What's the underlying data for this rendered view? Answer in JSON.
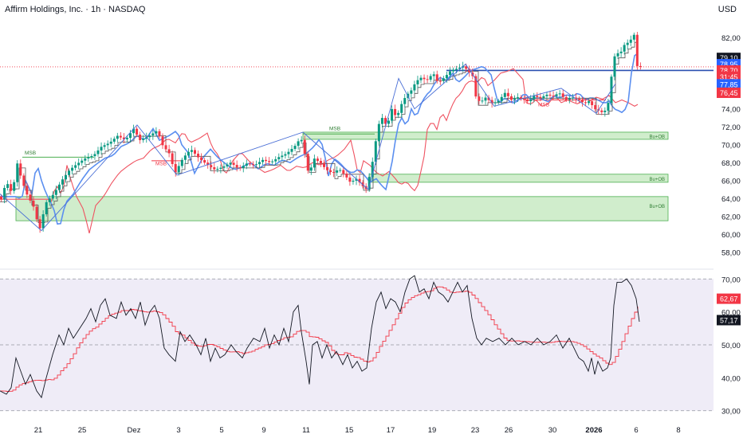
{
  "header": {
    "symbol_title": "Affirm Holdings, Inc. · 1h · NASDAQ",
    "currency": "USD"
  },
  "colors": {
    "bull": "#089981",
    "bear": "#f23645",
    "ema_fast": "#5b8ff0",
    "ema_slow": "#ef5361",
    "zone_fill": "#b7e3b1",
    "zone_border": "#4caf50",
    "zigzag": "#4a6fd6",
    "resistance": "#2a4fb0",
    "rsi_line": "#131722",
    "rsi_ma": "#f23645",
    "rsi_band": "#efecf7"
  },
  "chart_data": [
    {
      "type": "candlestick",
      "title": "Affirm Holdings, Inc. · 1h · NASDAQ",
      "y_axis": {
        "range": [
          56.8,
          83.5
        ],
        "ticks": [
          "82,00",
          "80,00",
          "78,00",
          "76,00",
          "74,00",
          "72,00",
          "70,00",
          "68,00",
          "66,00",
          "64,00",
          "62,00",
          "60,00",
          "58,00"
        ]
      },
      "x_axis": {
        "ticks": [
          "21",
          "25",
          "Dez",
          "3",
          "5",
          "9",
          "11",
          "15",
          "17",
          "19",
          "23",
          "26",
          "30",
          "2026",
          "6",
          "8"
        ]
      },
      "price_path": [
        [
          0,
          64.2
        ],
        [
          5,
          63.8
        ],
        [
          10,
          66.0
        ],
        [
          18,
          64.5
        ],
        [
          24,
          68.0
        ],
        [
          30,
          66.0
        ],
        [
          36,
          64.5
        ],
        [
          45,
          63.0
        ],
        [
          52,
          60.4
        ],
        [
          60,
          63.5
        ],
        [
          70,
          64.5
        ],
        [
          80,
          66.0
        ],
        [
          90,
          67.2
        ],
        [
          100,
          67.9
        ],
        [
          110,
          68.5
        ],
        [
          120,
          68.8
        ],
        [
          130,
          69.8
        ],
        [
          140,
          70.2
        ],
        [
          150,
          71.0
        ],
        [
          160,
          70.5
        ],
        [
          170,
          71.8
        ],
        [
          178,
          70.5
        ],
        [
          190,
          71.0
        ],
        [
          200,
          71.6
        ],
        [
          206,
          70.0
        ],
        [
          215,
          69.0
        ],
        [
          222,
          66.8
        ],
        [
          232,
          68.5
        ],
        [
          242,
          69.5
        ],
        [
          252,
          68.5
        ],
        [
          262,
          67.8
        ],
        [
          272,
          67.2
        ],
        [
          282,
          67.5
        ],
        [
          292,
          68.0
        ],
        [
          302,
          67.3
        ],
        [
          312,
          67.9
        ],
        [
          322,
          67.7
        ],
        [
          332,
          68.3
        ],
        [
          342,
          68.0
        ],
        [
          352,
          68.6
        ],
        [
          362,
          69.0
        ],
        [
          372,
          69.8
        ],
        [
          380,
          70.8
        ],
        [
          386,
          68.5
        ],
        [
          390,
          66.5
        ],
        [
          396,
          68.5
        ],
        [
          404,
          68.0
        ],
        [
          412,
          67.2
        ],
        [
          420,
          66.8
        ],
        [
          428,
          67.3
        ],
        [
          436,
          66.5
        ],
        [
          442,
          65.8
        ],
        [
          450,
          66.2
        ],
        [
          456,
          65.5
        ],
        [
          462,
          65.0
        ],
        [
          466,
          66.5
        ],
        [
          472,
          69.0
        ],
        [
          476,
          72.0
        ],
        [
          482,
          73.0
        ],
        [
          488,
          72.0
        ],
        [
          494,
          74.0
        ],
        [
          500,
          73.0
        ],
        [
          506,
          74.5
        ],
        [
          512,
          75.5
        ],
        [
          518,
          76.0
        ],
        [
          524,
          77.0
        ],
        [
          530,
          77.5
        ],
        [
          538,
          77.2
        ],
        [
          546,
          78.0
        ],
        [
          552,
          76.9
        ],
        [
          560,
          77.5
        ],
        [
          568,
          78.3
        ],
        [
          576,
          78.5
        ],
        [
          584,
          78.8
        ],
        [
          590,
          78.2
        ],
        [
          596,
          77.6
        ],
        [
          600,
          75.0
        ],
        [
          606,
          74.8
        ],
        [
          612,
          75.3
        ],
        [
          620,
          74.6
        ],
        [
          628,
          74.9
        ],
        [
          636,
          75.8
        ],
        [
          644,
          75.0
        ],
        [
          652,
          75.3
        ],
        [
          660,
          75.0
        ],
        [
          666,
          74.8
        ],
        [
          672,
          75.5
        ],
        [
          680,
          75.2
        ],
        [
          688,
          75.6
        ],
        [
          696,
          75.4
        ],
        [
          704,
          75.8
        ],
        [
          712,
          75.0
        ],
        [
          720,
          75.3
        ],
        [
          728,
          75.0
        ],
        [
          736,
          74.6
        ],
        [
          742,
          74.9
        ],
        [
          748,
          74.0
        ],
        [
          754,
          73.8
        ],
        [
          760,
          73.5
        ],
        [
          766,
          74.8
        ],
        [
          772,
          79.6
        ],
        [
          776,
          80.3
        ],
        [
          780,
          80.1
        ],
        [
          786,
          81.2
        ],
        [
          792,
          81.5
        ],
        [
          798,
          82.3
        ],
        [
          802,
          78.7
        ]
      ],
      "series": [
        {
          "name": "",
          "last_value": "78,95"
        },
        {
          "name": "",
          "last_value": "77,85"
        },
        {
          "name": "",
          "last_value": "76,45"
        }
      ],
      "price_badges": [
        "79,10",
        "78,70",
        "31:45"
      ],
      "structure_labels": [
        "MSB",
        "MSB",
        "MSB",
        "MSB"
      ],
      "demand_zones": [
        {
          "label": "Bu+OB",
          "low": 70.6,
          "high": 71.4
        },
        {
          "label": "Bu+OB",
          "low": 65.8,
          "high": 66.7
        },
        {
          "label": "Bu+OB",
          "low": 61.5,
          "high": 64.2
        }
      ],
      "resistance_level": 78.3,
      "current_price_level": 78.7
    },
    {
      "type": "line",
      "title": "",
      "y_axis": {
        "range": [
          28,
          72
        ],
        "ticks": [
          "70,00",
          "60,00",
          "50,00",
          "40,00",
          "30,00"
        ]
      },
      "bands": [
        30,
        50,
        70
      ],
      "series": [
        {
          "name": "",
          "last_value": "57,17"
        },
        {
          "name": "",
          "last_value": "62,67"
        }
      ],
      "rsi_path": [
        [
          0,
          36
        ],
        [
          8,
          35
        ],
        [
          14,
          37
        ],
        [
          20,
          46
        ],
        [
          26,
          42
        ],
        [
          32,
          38
        ],
        [
          38,
          41
        ],
        [
          46,
          36
        ],
        [
          52,
          34
        ],
        [
          58,
          40
        ],
        [
          66,
          47
        ],
        [
          74,
          53
        ],
        [
          80,
          50
        ],
        [
          86,
          55
        ],
        [
          92,
          52
        ],
        [
          100,
          55
        ],
        [
          108,
          58
        ],
        [
          114,
          61
        ],
        [
          120,
          57
        ],
        [
          126,
          62
        ],
        [
          132,
          64
        ],
        [
          138,
          59
        ],
        [
          146,
          58
        ],
        [
          152,
          63
        ],
        [
          158,
          59
        ],
        [
          164,
          61
        ],
        [
          170,
          58
        ],
        [
          176,
          63
        ],
        [
          182,
          56
        ],
        [
          188,
          60
        ],
        [
          194,
          62
        ],
        [
          200,
          58
        ],
        [
          206,
          49
        ],
        [
          212,
          47
        ],
        [
          220,
          45
        ],
        [
          226,
          54
        ],
        [
          232,
          51
        ],
        [
          238,
          53
        ],
        [
          246,
          50
        ],
        [
          252,
          47
        ],
        [
          258,
          52
        ],
        [
          264,
          45
        ],
        [
          270,
          49
        ],
        [
          276,
          46
        ],
        [
          282,
          47
        ],
        [
          290,
          50
        ],
        [
          296,
          48
        ],
        [
          304,
          46
        ],
        [
          310,
          49
        ],
        [
          318,
          52
        ],
        [
          326,
          51
        ],
        [
          332,
          55
        ],
        [
          338,
          49
        ],
        [
          344,
          53
        ],
        [
          350,
          50
        ],
        [
          356,
          55
        ],
        [
          362,
          51
        ],
        [
          368,
          60
        ],
        [
          374,
          62
        ],
        [
          378,
          54
        ],
        [
          384,
          45
        ],
        [
          388,
          38
        ],
        [
          392,
          50
        ],
        [
          398,
          51
        ],
        [
          404,
          46
        ],
        [
          410,
          50
        ],
        [
          416,
          46
        ],
        [
          422,
          48
        ],
        [
          430,
          44
        ],
        [
          436,
          47
        ],
        [
          442,
          43
        ],
        [
          448,
          45
        ],
        [
          454,
          42
        ],
        [
          460,
          43
        ],
        [
          466,
          55
        ],
        [
          472,
          63
        ],
        [
          478,
          66
        ],
        [
          484,
          61
        ],
        [
          490,
          64
        ],
        [
          496,
          63
        ],
        [
          502,
          60
        ],
        [
          508,
          66
        ],
        [
          514,
          70
        ],
        [
          520,
          71
        ],
        [
          526,
          66
        ],
        [
          532,
          67
        ],
        [
          538,
          64
        ],
        [
          544,
          69
        ],
        [
          550,
          66
        ],
        [
          556,
          65
        ],
        [
          562,
          63
        ],
        [
          568,
          66
        ],
        [
          574,
          69
        ],
        [
          580,
          66
        ],
        [
          586,
          68
        ],
        [
          592,
          58
        ],
        [
          598,
          52
        ],
        [
          604,
          50
        ],
        [
          610,
          52
        ],
        [
          618,
          51
        ],
        [
          626,
          52
        ],
        [
          634,
          50
        ],
        [
          642,
          52
        ],
        [
          650,
          50
        ],
        [
          658,
          51
        ],
        [
          666,
          50
        ],
        [
          674,
          52
        ],
        [
          682,
          50
        ],
        [
          690,
          51
        ],
        [
          698,
          53
        ],
        [
          706,
          49
        ],
        [
          714,
          52
        ],
        [
          720,
          49
        ],
        [
          726,
          46
        ],
        [
          732,
          45
        ],
        [
          738,
          42
        ],
        [
          742,
          46
        ],
        [
          746,
          41
        ],
        [
          750,
          45
        ],
        [
          756,
          42
        ],
        [
          762,
          43
        ],
        [
          766,
          46
        ],
        [
          770,
          62
        ],
        [
          774,
          69
        ],
        [
          780,
          69
        ],
        [
          786,
          70
        ],
        [
          792,
          68
        ],
        [
          798,
          64
        ],
        [
          802,
          57
        ]
      ]
    }
  ]
}
